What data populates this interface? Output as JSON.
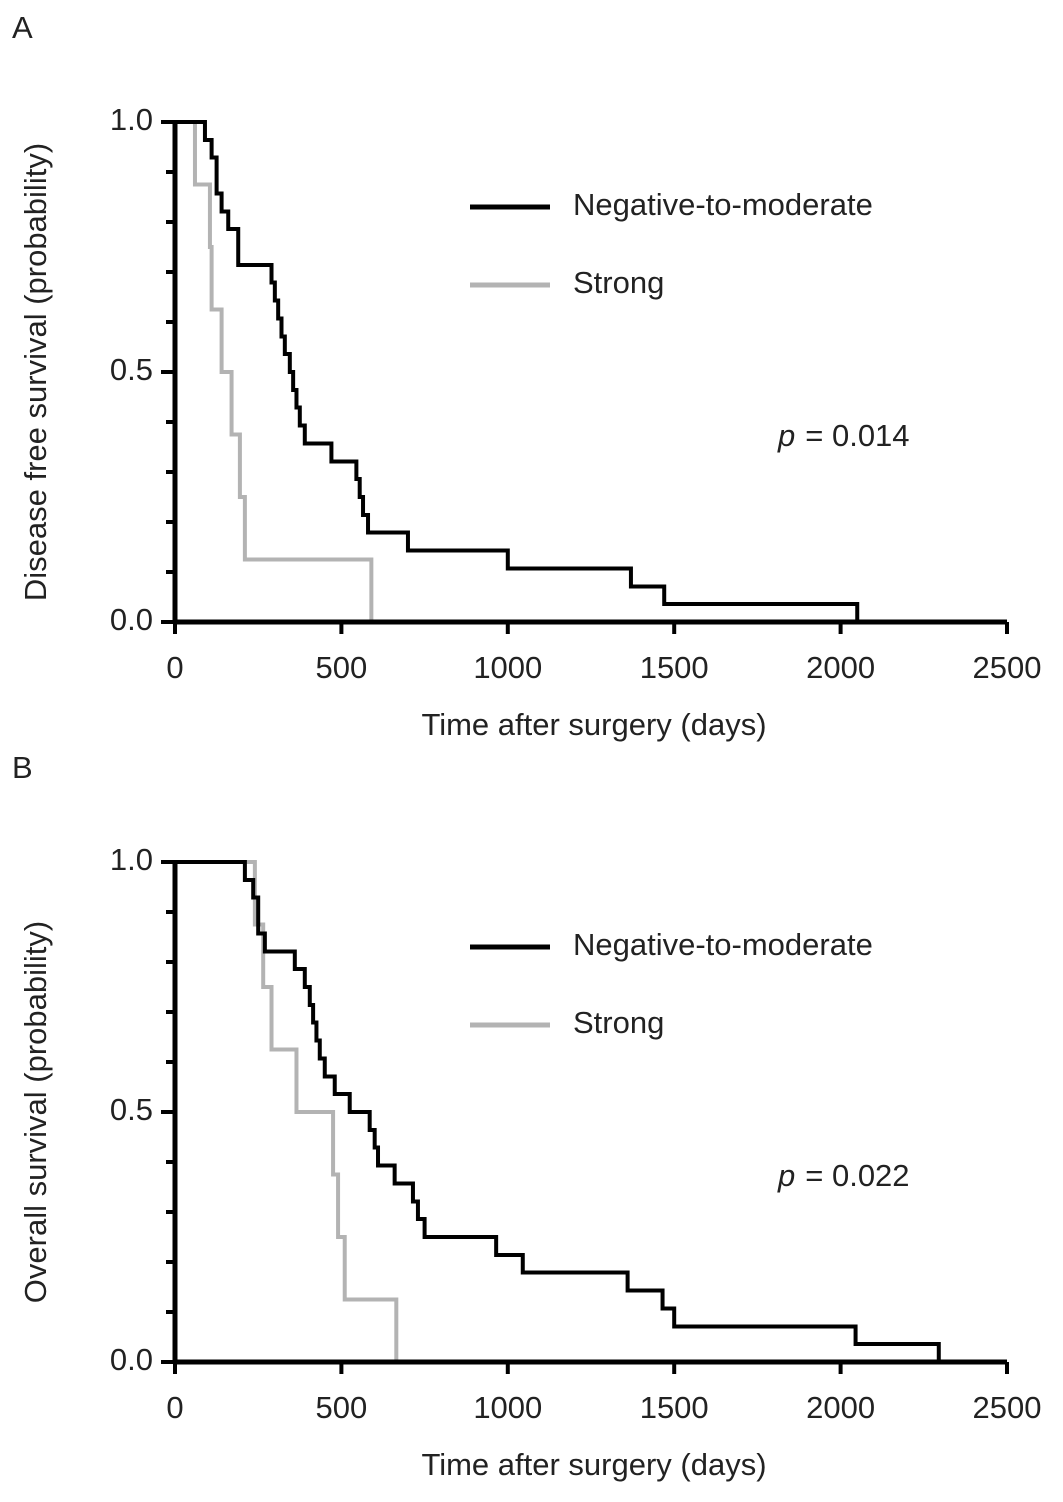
{
  "chart_data": [
    {
      "type": "step",
      "panel_label": "A",
      "xlabel": "Time after surgery (days)",
      "ylabel": "Disease free survival (probability)",
      "xlim": [
        0,
        2500
      ],
      "ylim": [
        0,
        1
      ],
      "xticks": [
        0,
        500,
        1000,
        1500,
        2000,
        2500
      ],
      "yticks": [
        {
          "value": 0,
          "label": "0.0"
        },
        {
          "value": 0.5,
          "label": "0.5"
        },
        {
          "value": 1,
          "label": "1.0"
        }
      ],
      "yminorticks": [
        0.1,
        0.2,
        0.3,
        0.4,
        0.6,
        0.7,
        0.8,
        0.9
      ],
      "legend": "upper right",
      "annotation": {
        "italic": "p",
        "text": "= 0.014"
      },
      "series": [
        {
          "name": "Negative-to-moderate",
          "color": "#000000",
          "x": [
            0,
            90,
            110,
            125,
            140,
            160,
            190,
            290,
            300,
            310,
            320,
            330,
            345,
            355,
            365,
            375,
            390,
            470,
            545,
            555,
            565,
            580,
            700,
            1000,
            1370,
            1470,
            2050
          ],
          "values": [
            1,
            0.964,
            0.929,
            0.857,
            0.821,
            0.786,
            0.714,
            0.679,
            0.643,
            0.607,
            0.571,
            0.536,
            0.5,
            0.464,
            0.429,
            0.393,
            0.357,
            0.321,
            0.286,
            0.25,
            0.214,
            0.179,
            0.143,
            0.107,
            0.071,
            0.036,
            0
          ]
        },
        {
          "name": "Strong",
          "color": "#b3b3b3",
          "x": [
            0,
            60,
            105,
            110,
            140,
            170,
            195,
            210,
            590
          ],
          "values": [
            1,
            0.875,
            0.75,
            0.625,
            0.5,
            0.375,
            0.25,
            0.125,
            0
          ]
        }
      ]
    },
    {
      "type": "step",
      "panel_label": "B",
      "xlabel": "Time after surgery (days)",
      "ylabel": "Overall survival (probability)",
      "xlim": [
        0,
        2500
      ],
      "ylim": [
        0,
        1
      ],
      "xticks": [
        0,
        500,
        1000,
        1500,
        2000,
        2500
      ],
      "yticks": [
        {
          "value": 0,
          "label": "0.0"
        },
        {
          "value": 0.5,
          "label": "0.5"
        },
        {
          "value": 1,
          "label": "1.0"
        }
      ],
      "yminorticks": [
        0.1,
        0.2,
        0.3,
        0.4,
        0.6,
        0.7,
        0.8,
        0.9
      ],
      "legend": "upper right",
      "annotation": {
        "italic": "p",
        "text": "= 0.022"
      },
      "series": [
        {
          "name": "Negative-to-moderate",
          "color": "#000000",
          "x": [
            0,
            210,
            235,
            250,
            270,
            360,
            390,
            405,
            415,
            425,
            435,
            450,
            480,
            525,
            585,
            600,
            610,
            660,
            715,
            730,
            750,
            965,
            1045,
            1360,
            1465,
            1500,
            2045,
            2295
          ],
          "values": [
            1,
            0.964,
            0.929,
            0.857,
            0.821,
            0.786,
            0.75,
            0.714,
            0.679,
            0.643,
            0.607,
            0.571,
            0.536,
            0.5,
            0.464,
            0.429,
            0.393,
            0.357,
            0.321,
            0.286,
            0.25,
            0.214,
            0.179,
            0.143,
            0.107,
            0.071,
            0.036,
            0
          ]
        },
        {
          "name": "Strong",
          "color": "#b3b3b3",
          "x": [
            0,
            240,
            265,
            290,
            365,
            475,
            490,
            510,
            665
          ],
          "values": [
            1,
            0.875,
            0.75,
            0.625,
            0.5,
            0.375,
            0.25,
            0.125,
            0
          ]
        }
      ]
    }
  ]
}
